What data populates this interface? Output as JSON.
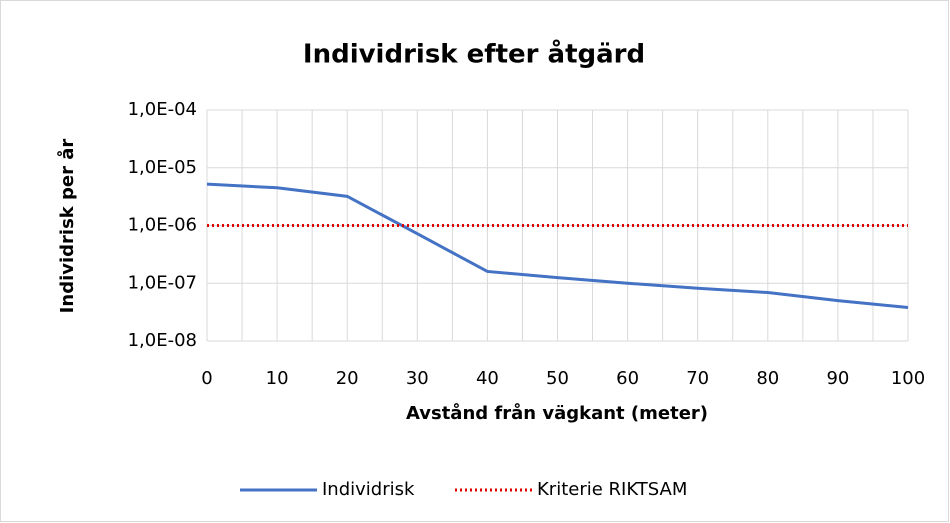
{
  "chart_data": {
    "type": "line",
    "title": "Individrisk efter åtgärd",
    "x_label": "Avstånd från vägkant (meter)",
    "y_label": "Individrisk per år",
    "x": [
      0,
      10,
      20,
      30,
      40,
      50,
      60,
      70,
      80,
      90,
      100
    ],
    "series": [
      {
        "name": "Individrisk",
        "color": "#4472c4",
        "style": "solid",
        "values": [
          5.2e-06,
          4.5e-06,
          3.2e-06,
          7.2e-07,
          1.6e-07,
          1.25e-07,
          1e-07,
          8.2e-08,
          6.9e-08,
          5e-08,
          3.8e-08
        ]
      },
      {
        "name": "Kriterie RIKTSAM",
        "color": "#e00000",
        "style": "dotted",
        "values": [
          1e-06,
          1e-06,
          1e-06,
          1e-06,
          1e-06,
          1e-06,
          1e-06,
          1e-06,
          1e-06,
          1e-06,
          1e-06
        ]
      }
    ],
    "xlim": [
      0,
      100
    ],
    "xticks": [
      0,
      10,
      20,
      30,
      40,
      50,
      60,
      70,
      80,
      90,
      100
    ],
    "xminor": [
      5,
      15,
      25,
      35,
      45,
      55,
      65,
      75,
      85,
      95
    ],
    "ylim": [
      1e-08,
      0.0001
    ],
    "log_y": true,
    "yticks": [
      {
        "value": 1e-08,
        "label": "1,0E-08"
      },
      {
        "value": 1e-07,
        "label": "1,0E-07"
      },
      {
        "value": 1e-06,
        "label": "1,0E-06"
      },
      {
        "value": 1e-05,
        "label": "1,0E-05"
      },
      {
        "value": 0.0001,
        "label": "1,0E-04"
      }
    ],
    "grid": true,
    "legend": "bottom"
  }
}
